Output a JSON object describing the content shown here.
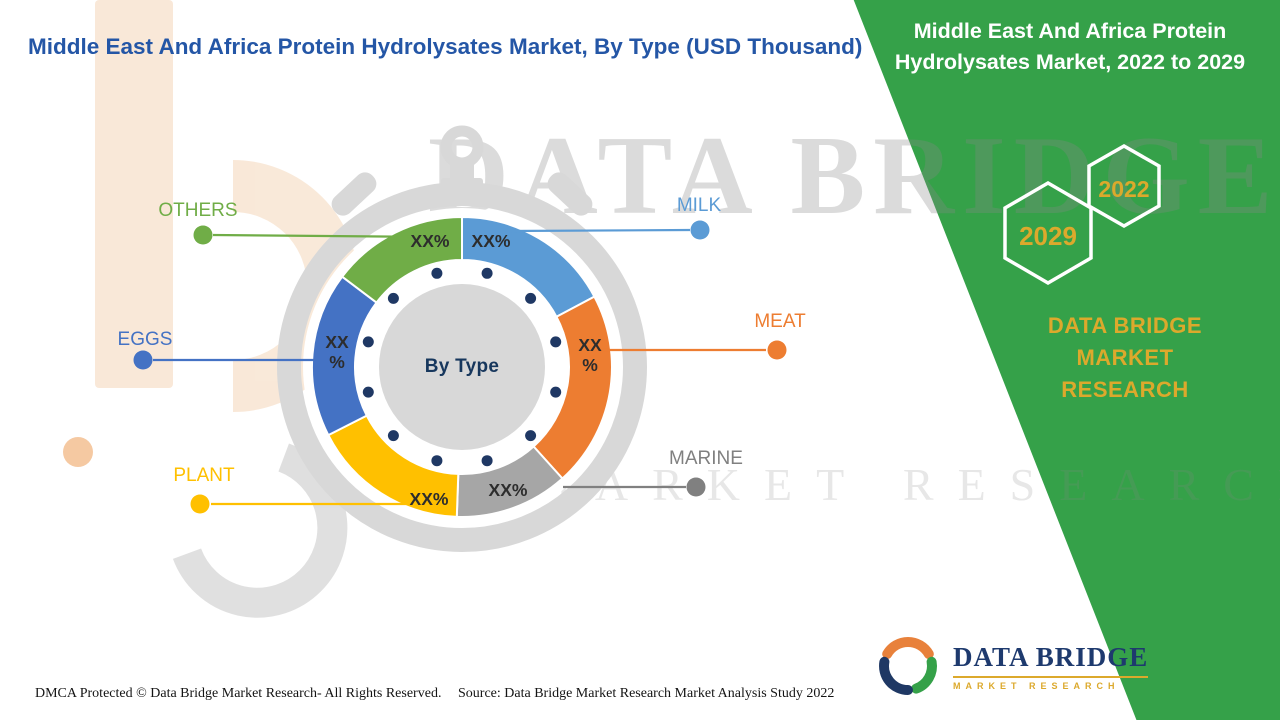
{
  "header": {
    "title": "Middle East And Africa Protein Hydrolysates Market, By Type (USD Thousand)",
    "title_color": "#2456A6"
  },
  "watermark": {
    "line1": "DATA BRIDGE",
    "line2": "MARKET RESEARCH"
  },
  "side_panel": {
    "background_color": "#35A149",
    "accent_color": "#DCA92C",
    "title_lines": [
      "Middle East And Africa Protein",
      "Hydrolysates Market, 2022 to 2029"
    ],
    "hexagons": [
      {
        "label": "2029"
      },
      {
        "label": "2022"
      }
    ],
    "brand_lines": [
      "DATA BRIDGE MARKET",
      "RESEARCH"
    ]
  },
  "chart_data": {
    "type": "donut",
    "center_label": "By Type",
    "legend_position": "callouts-around-chart",
    "segments": [
      {
        "name": "MILK",
        "value_label": "XX%",
        "color": "#5B9BD5",
        "label_color": "#5B9BD5",
        "start_angle": 0,
        "end_angle": 62,
        "stacked": false
      },
      {
        "name": "MEAT",
        "value_label": "XX%",
        "color": "#ED7D31",
        "label_color": "#ED7D31",
        "start_angle": 62,
        "end_angle": 138,
        "stacked": true
      },
      {
        "name": "MARINE",
        "value_label": "XX%",
        "color": "#A6A6A6",
        "label_color": "#808080",
        "start_angle": 138,
        "end_angle": 182,
        "stacked": false
      },
      {
        "name": "PLANT",
        "value_label": "XX%",
        "color": "#FFC000",
        "label_color": "#FFC000",
        "start_angle": 182,
        "end_angle": 243,
        "stacked": false
      },
      {
        "name": "EGGS",
        "value_label": "XX%",
        "color": "#4472C4",
        "label_color": "#4472C4",
        "start_angle": 243,
        "end_angle": 307,
        "stacked": true
      },
      {
        "name": "OTHERS",
        "value_label": "XX%",
        "color": "#70AD47",
        "label_color": "#70AD47",
        "start_angle": 307,
        "end_angle": 360,
        "stacked": false
      }
    ]
  },
  "footer": {
    "dmca": "DMCA Protected © Data Bridge Market Research- All Rights Reserved.",
    "source": "Source: Data Bridge Market Research Market Analysis Study 2022"
  },
  "logo": {
    "wordmark": "DATA BRIDGE",
    "tagline": "MARKET RESEARCH"
  }
}
